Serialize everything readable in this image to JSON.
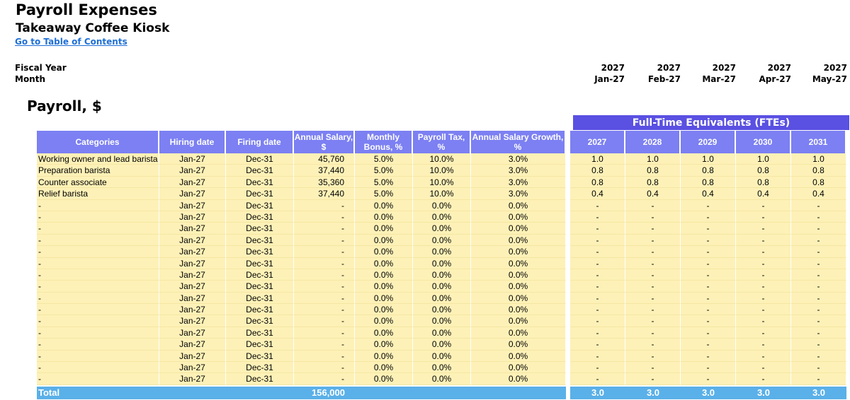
{
  "header": {
    "title": "Payroll Expenses",
    "subtitle": "Takeaway Coffee Kiosk",
    "toc_link": "Go to Table of Contents",
    "fiscal_year_label": "Fiscal Year",
    "month_label": "Month",
    "fiscal_years": [
      "2027",
      "2027",
      "2027",
      "2027",
      "2027"
    ],
    "months": [
      "Jan-27",
      "Feb-27",
      "Mar-27",
      "Apr-27",
      "May-27"
    ]
  },
  "section": {
    "title": "Payroll, $",
    "fte_banner": "Full-Time Equivalents (FTEs)"
  },
  "table": {
    "columns": [
      "Categories",
      "Hiring date",
      "Firing date",
      "Annual Salary, $",
      "Monthly Bonus, %",
      "Payroll Tax, %",
      "Annual Salary Growth, %"
    ],
    "fte_years": [
      "2027",
      "2028",
      "2029",
      "2030",
      "2031"
    ],
    "rows": [
      {
        "cat": "Working owner and lead barista",
        "hire": "Jan-27",
        "fire": "Dec-31",
        "salary": "45,760",
        "bonus": "5.0%",
        "tax": "10.0%",
        "growth": "3.0%",
        "fte": [
          "1.0",
          "1.0",
          "1.0",
          "1.0",
          "1.0"
        ]
      },
      {
        "cat": "Preparation barista",
        "hire": "Jan-27",
        "fire": "Dec-31",
        "salary": "37,440",
        "bonus": "5.0%",
        "tax": "10.0%",
        "growth": "3.0%",
        "fte": [
          "0.8",
          "0.8",
          "0.8",
          "0.8",
          "0.8"
        ]
      },
      {
        "cat": "Counter associate",
        "hire": "Jan-27",
        "fire": "Dec-31",
        "salary": "35,360",
        "bonus": "5.0%",
        "tax": "10.0%",
        "growth": "3.0%",
        "fte": [
          "0.8",
          "0.8",
          "0.8",
          "0.8",
          "0.8"
        ]
      },
      {
        "cat": "Relief barista",
        "hire": "Jan-27",
        "fire": "Dec-31",
        "salary": "37,440",
        "bonus": "5.0%",
        "tax": "10.0%",
        "growth": "3.0%",
        "fte": [
          "0.4",
          "0.4",
          "0.4",
          "0.4",
          "0.4"
        ]
      },
      {
        "cat": "-",
        "hire": "Jan-27",
        "fire": "Dec-31",
        "salary": "-",
        "bonus": "0.0%",
        "tax": "0.0%",
        "growth": "0.0%",
        "fte": [
          "-",
          "-",
          "-",
          "-",
          "-"
        ]
      },
      {
        "cat": "-",
        "hire": "Jan-27",
        "fire": "Dec-31",
        "salary": "-",
        "bonus": "0.0%",
        "tax": "0.0%",
        "growth": "0.0%",
        "fte": [
          "-",
          "-",
          "-",
          "-",
          "-"
        ]
      },
      {
        "cat": "-",
        "hire": "Jan-27",
        "fire": "Dec-31",
        "salary": "-",
        "bonus": "0.0%",
        "tax": "0.0%",
        "growth": "0.0%",
        "fte": [
          "-",
          "-",
          "-",
          "-",
          "-"
        ]
      },
      {
        "cat": "-",
        "hire": "Jan-27",
        "fire": "Dec-31",
        "salary": "-",
        "bonus": "0.0%",
        "tax": "0.0%",
        "growth": "0.0%",
        "fte": [
          "-",
          "-",
          "-",
          "-",
          "-"
        ]
      },
      {
        "cat": "-",
        "hire": "Jan-27",
        "fire": "Dec-31",
        "salary": "-",
        "bonus": "0.0%",
        "tax": "0.0%",
        "growth": "0.0%",
        "fte": [
          "-",
          "-",
          "-",
          "-",
          "-"
        ]
      },
      {
        "cat": "-",
        "hire": "Jan-27",
        "fire": "Dec-31",
        "salary": "-",
        "bonus": "0.0%",
        "tax": "0.0%",
        "growth": "0.0%",
        "fte": [
          "-",
          "-",
          "-",
          "-",
          "-"
        ]
      },
      {
        "cat": "-",
        "hire": "Jan-27",
        "fire": "Dec-31",
        "salary": "-",
        "bonus": "0.0%",
        "tax": "0.0%",
        "growth": "0.0%",
        "fte": [
          "-",
          "-",
          "-",
          "-",
          "-"
        ]
      },
      {
        "cat": "-",
        "hire": "Jan-27",
        "fire": "Dec-31",
        "salary": "-",
        "bonus": "0.0%",
        "tax": "0.0%",
        "growth": "0.0%",
        "fte": [
          "-",
          "-",
          "-",
          "-",
          "-"
        ]
      },
      {
        "cat": "-",
        "hire": "Jan-27",
        "fire": "Dec-31",
        "salary": "-",
        "bonus": "0.0%",
        "tax": "0.0%",
        "growth": "0.0%",
        "fte": [
          "-",
          "-",
          "-",
          "-",
          "-"
        ]
      },
      {
        "cat": "-",
        "hire": "Jan-27",
        "fire": "Dec-31",
        "salary": "-",
        "bonus": "0.0%",
        "tax": "0.0%",
        "growth": "0.0%",
        "fte": [
          "-",
          "-",
          "-",
          "-",
          "-"
        ]
      },
      {
        "cat": "-",
        "hire": "Jan-27",
        "fire": "Dec-31",
        "salary": "-",
        "bonus": "0.0%",
        "tax": "0.0%",
        "growth": "0.0%",
        "fte": [
          "-",
          "-",
          "-",
          "-",
          "-"
        ]
      },
      {
        "cat": "-",
        "hire": "Jan-27",
        "fire": "Dec-31",
        "salary": "-",
        "bonus": "0.0%",
        "tax": "0.0%",
        "growth": "0.0%",
        "fte": [
          "-",
          "-",
          "-",
          "-",
          "-"
        ]
      },
      {
        "cat": "-",
        "hire": "Jan-27",
        "fire": "Dec-31",
        "salary": "-",
        "bonus": "0.0%",
        "tax": "0.0%",
        "growth": "0.0%",
        "fte": [
          "-",
          "-",
          "-",
          "-",
          "-"
        ]
      },
      {
        "cat": "-",
        "hire": "Jan-27",
        "fire": "Dec-31",
        "salary": "-",
        "bonus": "0.0%",
        "tax": "0.0%",
        "growth": "0.0%",
        "fte": [
          "-",
          "-",
          "-",
          "-",
          "-"
        ]
      },
      {
        "cat": "-",
        "hire": "Jan-27",
        "fire": "Dec-31",
        "salary": "-",
        "bonus": "0.0%",
        "tax": "0.0%",
        "growth": "0.0%",
        "fte": [
          "-",
          "-",
          "-",
          "-",
          "-"
        ]
      },
      {
        "cat": "-",
        "hire": "Jan-27",
        "fire": "Dec-31",
        "salary": "-",
        "bonus": "0.0%",
        "tax": "0.0%",
        "growth": "0.0%",
        "fte": [
          "-",
          "-",
          "-",
          "-",
          "-"
        ]
      }
    ],
    "total": {
      "label": "Total",
      "salary": "156,000",
      "fte": [
        "3.0",
        "3.0",
        "3.0",
        "3.0",
        "3.0"
      ]
    }
  }
}
